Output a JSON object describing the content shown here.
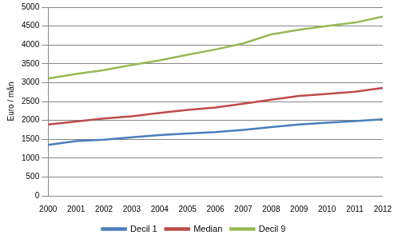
{
  "chart_data": {
    "type": "line",
    "y_label": "Euro / mån",
    "categories": [
      "2000",
      "2001",
      "2002",
      "2003",
      "2004",
      "2005",
      "2006",
      "2007",
      "2008",
      "2009",
      "2010",
      "2011",
      "2012"
    ],
    "series": [
      {
        "name": "Decil 1",
        "color": "#4a7ebb",
        "values": [
          1350,
          1450,
          1490,
          1550,
          1610,
          1650,
          1690,
          1750,
          1820,
          1890,
          1940,
          1980,
          2030
        ]
      },
      {
        "name": "Median",
        "color": "#be4b48",
        "values": [
          1890,
          1970,
          2050,
          2110,
          2200,
          2280,
          2340,
          2440,
          2550,
          2650,
          2700,
          2760,
          2860
        ]
      },
      {
        "name": "Decil 9",
        "color": "#98b954",
        "values": [
          3110,
          3230,
          3330,
          3470,
          3590,
          3740,
          3880,
          4040,
          4280,
          4400,
          4500,
          4590,
          4750
        ]
      }
    ],
    "ylim": [
      0,
      5000
    ],
    "yticks": [
      0,
      500,
      1000,
      1500,
      2000,
      2500,
      3000,
      3500,
      4000,
      4500,
      5000
    ],
    "grid": true,
    "legend": "bottom"
  }
}
